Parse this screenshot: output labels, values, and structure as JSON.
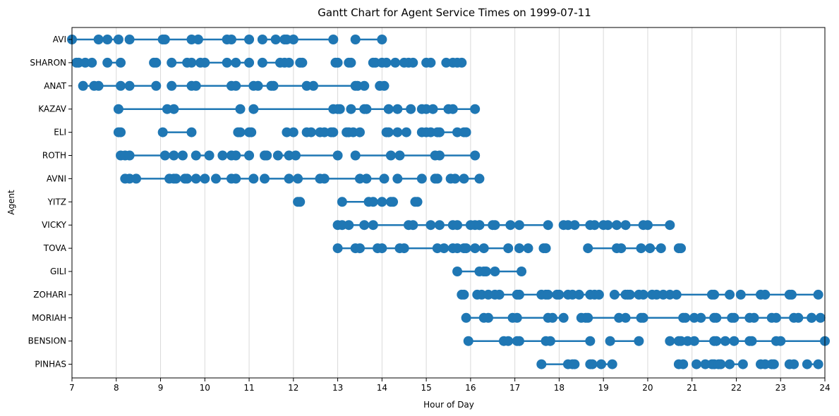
{
  "chart_data": {
    "type": "gantt",
    "title": "Gantt Chart for Agent Service Times on 1999-07-11",
    "xlabel": "Hour of Day",
    "ylabel": "Agent",
    "xlim": [
      7,
      24
    ],
    "xticks": [
      7,
      8,
      9,
      10,
      11,
      12,
      13,
      14,
      15,
      16,
      17,
      18,
      19,
      20,
      21,
      22,
      23,
      24
    ],
    "grid": "vertical",
    "legend": "none",
    "color": "#1f77b4",
    "agents": [
      {
        "name": "AVI",
        "intervals": [
          [
            7.0,
            7.6
          ],
          [
            7.8,
            8.05
          ],
          [
            8.3,
            9.05
          ],
          [
            9.1,
            9.7
          ],
          [
            9.85,
            10.5
          ],
          [
            10.6,
            11.0
          ],
          [
            11.3,
            11.6
          ],
          [
            11.8,
            11.85
          ],
          [
            12.0,
            12.9
          ],
          [
            13.4,
            14.0
          ]
        ]
      },
      {
        "name": "SHARON",
        "intervals": [
          [
            7.1,
            7.15
          ],
          [
            7.3,
            7.45
          ],
          [
            7.8,
            8.1
          ],
          [
            8.85,
            8.9
          ],
          [
            9.25,
            9.6
          ],
          [
            9.7,
            9.9
          ],
          [
            10.0,
            10.5
          ],
          [
            10.7,
            11.0
          ],
          [
            11.3,
            11.7
          ],
          [
            11.8,
            11.9
          ],
          [
            12.15,
            12.2
          ],
          [
            12.95,
            13.0
          ],
          [
            13.25,
            13.3
          ],
          [
            13.8,
            13.85
          ],
          [
            14.0,
            14.1
          ],
          [
            14.3,
            14.5
          ],
          [
            14.6,
            14.7
          ],
          [
            15.0,
            15.1
          ],
          [
            15.45,
            15.6
          ],
          [
            15.7,
            15.8
          ]
        ]
      },
      {
        "name": "ANAT",
        "intervals": [
          [
            7.25,
            7.5
          ],
          [
            7.6,
            8.1
          ],
          [
            8.3,
            8.9
          ],
          [
            9.25,
            9.7
          ],
          [
            9.8,
            10.6
          ],
          [
            10.7,
            11.1
          ],
          [
            11.2,
            11.5
          ],
          [
            11.55,
            12.3
          ],
          [
            12.45,
            13.4
          ],
          [
            13.45,
            13.6
          ],
          [
            13.95,
            14.05
          ]
        ]
      },
      {
        "name": "KAZAV",
        "intervals": [
          [
            8.05,
            9.15
          ],
          [
            9.3,
            10.8
          ],
          [
            11.1,
            12.9
          ],
          [
            13.0,
            13.05
          ],
          [
            13.3,
            13.6
          ],
          [
            13.65,
            14.15
          ],
          [
            14.35,
            14.65
          ],
          [
            14.9,
            15.0
          ],
          [
            15.15,
            15.5
          ],
          [
            15.6,
            16.1
          ]
        ]
      },
      {
        "name": "ELI",
        "intervals": [
          [
            8.05,
            8.1
          ],
          [
            9.05,
            9.7
          ],
          [
            10.75,
            10.8
          ],
          [
            11.0,
            11.05
          ],
          [
            11.85,
            12.0
          ],
          [
            12.3,
            12.4
          ],
          [
            12.6,
            12.7
          ],
          [
            12.85,
            12.9
          ],
          [
            13.2,
            13.25
          ],
          [
            13.35,
            13.5
          ],
          [
            14.1,
            14.15
          ],
          [
            14.35,
            14.55
          ],
          [
            14.9,
            15.0
          ],
          [
            15.1,
            15.25
          ],
          [
            15.3,
            15.7
          ],
          [
            15.85,
            15.9
          ]
        ]
      },
      {
        "name": "ROTH",
        "intervals": [
          [
            8.1,
            8.2
          ],
          [
            8.3,
            9.1
          ],
          [
            9.3,
            9.5
          ],
          [
            9.8,
            10.1
          ],
          [
            10.4,
            10.6
          ],
          [
            10.7,
            11.0
          ],
          [
            11.35,
            11.4
          ],
          [
            11.65,
            11.9
          ],
          [
            12.05,
            13.0
          ],
          [
            13.4,
            14.2
          ],
          [
            14.4,
            15.2
          ],
          [
            15.3,
            16.1
          ]
        ]
      },
      {
        "name": "AVNI",
        "intervals": [
          [
            8.2,
            8.3
          ],
          [
            8.45,
            9.2
          ],
          [
            9.3,
            9.35
          ],
          [
            9.55,
            9.6
          ],
          [
            9.8,
            10.0
          ],
          [
            10.25,
            10.6
          ],
          [
            10.7,
            11.1
          ],
          [
            11.35,
            11.9
          ],
          [
            12.1,
            12.6
          ],
          [
            12.7,
            13.5
          ],
          [
            13.65,
            14.05
          ],
          [
            14.35,
            14.9
          ],
          [
            15.2,
            15.25
          ],
          [
            15.55,
            15.65
          ],
          [
            15.85,
            16.2
          ]
        ]
      },
      {
        "name": "YITZ",
        "intervals": [
          [
            12.1,
            12.15
          ],
          [
            13.1,
            13.7
          ],
          [
            13.8,
            14.0
          ],
          [
            14.2,
            14.25
          ],
          [
            14.75,
            14.8
          ]
        ]
      },
      {
        "name": "VICKY",
        "intervals": [
          [
            13.0,
            13.1
          ],
          [
            13.25,
            13.6
          ],
          [
            13.8,
            14.6
          ],
          [
            14.7,
            15.1
          ],
          [
            15.3,
            15.6
          ],
          [
            15.7,
            16.0
          ],
          [
            16.1,
            16.2
          ],
          [
            16.2,
            16.5
          ],
          [
            16.55,
            16.9
          ],
          [
            17.1,
            17.75
          ],
          [
            18.1,
            18.2
          ],
          [
            18.35,
            18.7
          ],
          [
            18.8,
            19.0
          ],
          [
            19.1,
            19.3
          ],
          [
            19.5,
            19.9
          ],
          [
            20.0,
            20.5
          ]
        ]
      },
      {
        "name": "TOVA",
        "intervals": [
          [
            13.0,
            13.4
          ],
          [
            13.5,
            13.9
          ],
          [
            14.0,
            14.4
          ],
          [
            14.5,
            15.25
          ],
          [
            15.4,
            15.6
          ],
          [
            15.7,
            15.85
          ],
          [
            15.9,
            16.1
          ],
          [
            16.3,
            16.85
          ],
          [
            17.1,
            17.3
          ],
          [
            17.65,
            17.7
          ],
          [
            18.65,
            19.3
          ],
          [
            19.4,
            19.85
          ],
          [
            20.05,
            20.3
          ],
          [
            20.7,
            20.75
          ]
        ]
      },
      {
        "name": "GILI",
        "intervals": [
          [
            15.7,
            16.2
          ],
          [
            16.3,
            16.35
          ],
          [
            16.55,
            17.15
          ]
        ]
      },
      {
        "name": "ZOHARI",
        "intervals": [
          [
            15.8,
            15.85
          ],
          [
            16.15,
            16.25
          ],
          [
            16.4,
            16.55
          ],
          [
            16.65,
            17.05
          ],
          [
            17.1,
            17.6
          ],
          [
            17.7,
            17.75
          ],
          [
            17.95,
            18.0
          ],
          [
            18.2,
            18.3
          ],
          [
            18.45,
            18.7
          ],
          [
            18.8,
            18.9
          ],
          [
            19.25,
            19.5
          ],
          [
            19.55,
            19.6
          ],
          [
            19.8,
            19.9
          ],
          [
            20.1,
            20.2
          ],
          [
            20.35,
            20.5
          ],
          [
            20.65,
            21.45
          ],
          [
            21.5,
            21.85
          ],
          [
            22.1,
            22.55
          ],
          [
            22.65,
            23.2
          ],
          [
            23.25,
            23.85
          ]
        ]
      },
      {
        "name": "MORIAH",
        "intervals": [
          [
            15.9,
            16.3
          ],
          [
            16.4,
            16.95
          ],
          [
            17.05,
            17.75
          ],
          [
            17.85,
            18.1
          ],
          [
            18.5,
            18.6
          ],
          [
            18.65,
            19.35
          ],
          [
            19.5,
            19.85
          ],
          [
            19.9,
            20.8
          ],
          [
            20.85,
            21.05
          ],
          [
            21.2,
            21.5
          ],
          [
            21.55,
            21.9
          ],
          [
            21.95,
            22.3
          ],
          [
            22.4,
            22.8
          ],
          [
            22.9,
            23.3
          ],
          [
            23.4,
            23.7
          ],
          [
            23.7,
            23.9
          ]
        ]
      },
      {
        "name": "BENSION",
        "intervals": [
          [
            15.95,
            16.75
          ],
          [
            16.85,
            17.05
          ],
          [
            17.1,
            17.7
          ],
          [
            17.8,
            18.7
          ],
          [
            19.15,
            19.8
          ],
          [
            20.5,
            20.7
          ],
          [
            20.75,
            20.9
          ],
          [
            21.05,
            21.5
          ],
          [
            21.55,
            21.75
          ],
          [
            21.95,
            22.3
          ],
          [
            22.35,
            22.9
          ],
          [
            23.0,
            24.0
          ]
        ]
      },
      {
        "name": "PINHAS",
        "intervals": [
          [
            17.6,
            18.2
          ],
          [
            18.3,
            18.35
          ],
          [
            18.7,
            18.75
          ],
          [
            18.95,
            19.2
          ],
          [
            20.7,
            20.8
          ],
          [
            21.1,
            21.3
          ],
          [
            21.45,
            21.5
          ],
          [
            21.6,
            21.65
          ],
          [
            21.85,
            22.15
          ],
          [
            22.55,
            22.65
          ],
          [
            22.8,
            22.85
          ],
          [
            23.2,
            23.3
          ],
          [
            23.6,
            23.85
          ]
        ]
      }
    ]
  }
}
